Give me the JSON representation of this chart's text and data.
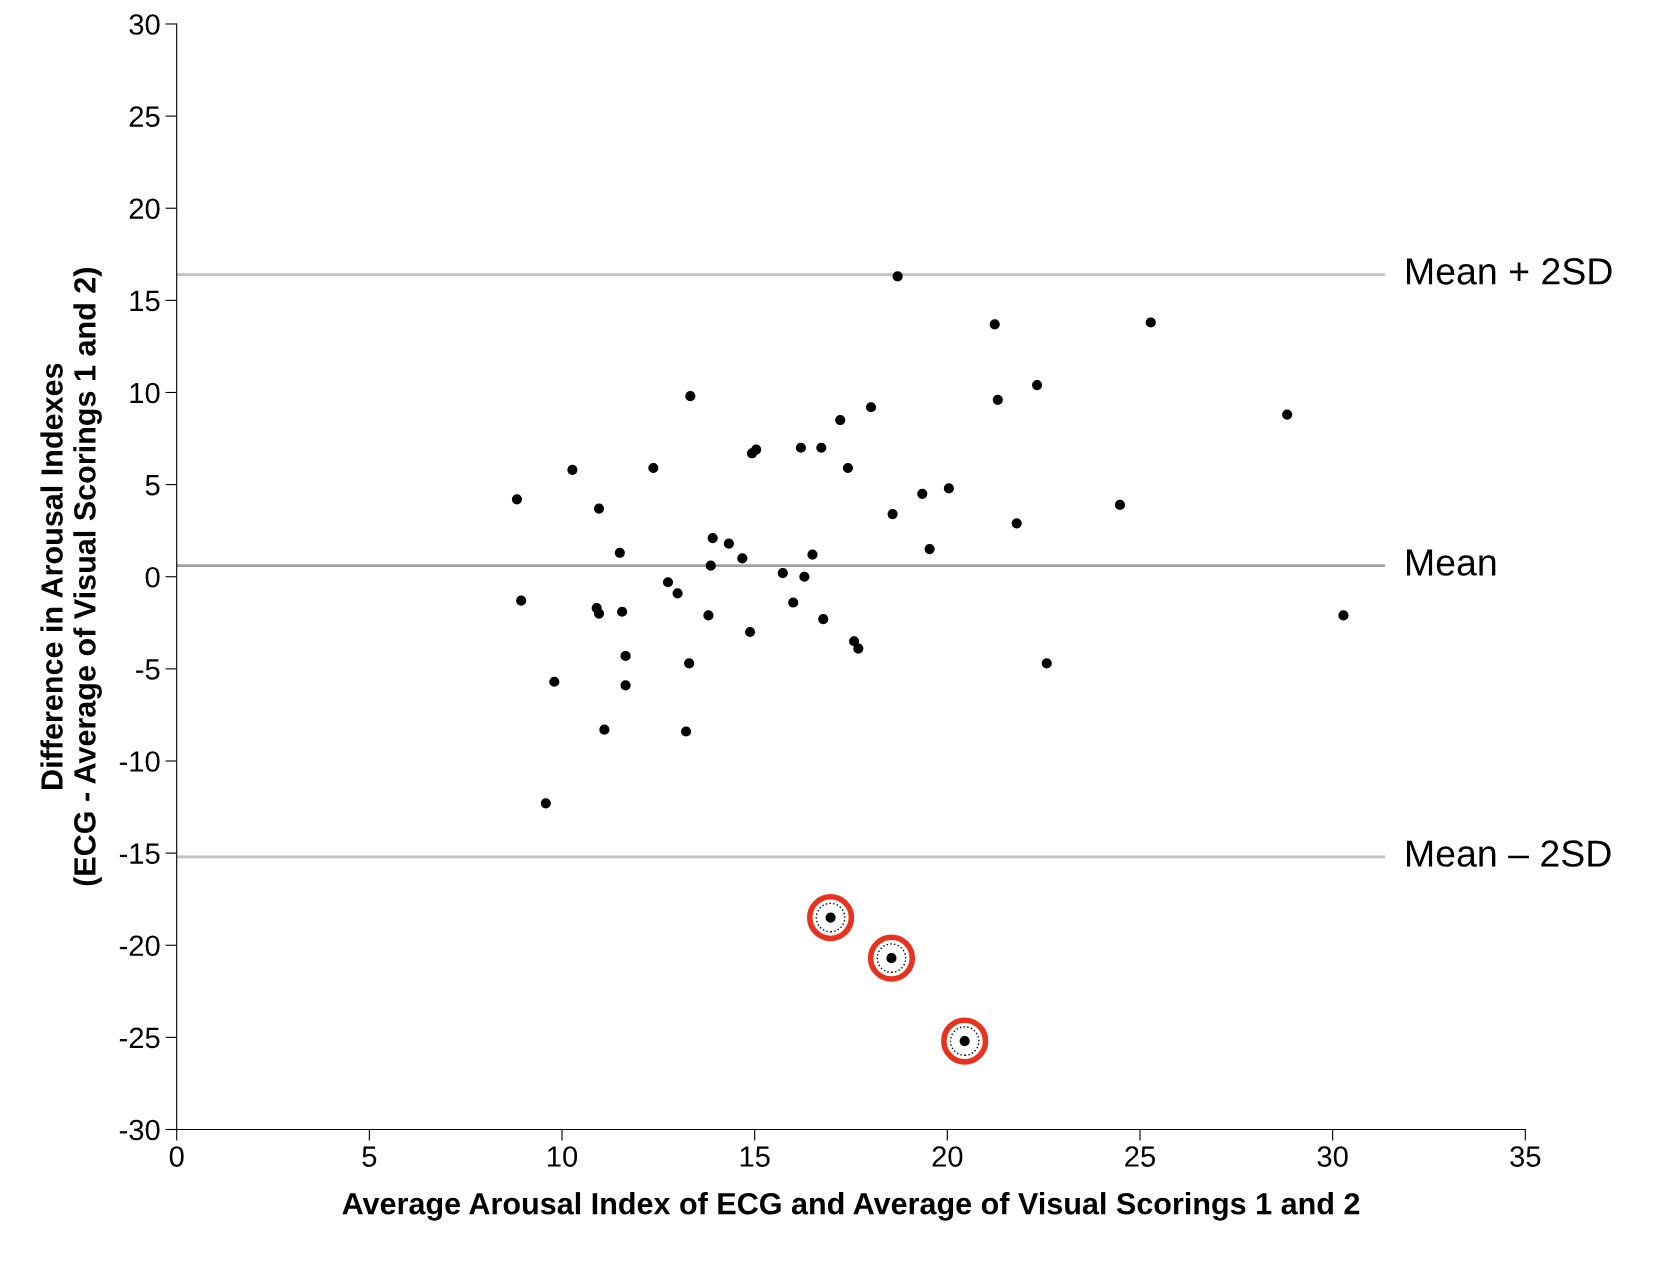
{
  "chart_data": {
    "type": "scatter",
    "xlabel": "Average Arousal Index of ECG and Average of Visual Scorings 1 and 2",
    "ylabel": "Difference in Arousal Indexes\n(ECG - Average of Visual Scorings 1 and 2)",
    "xlim": [
      0,
      35
    ],
    "ylim": [
      -30,
      30
    ],
    "xticks": [
      0,
      5,
      10,
      15,
      20,
      25,
      30,
      35
    ],
    "yticks": [
      -30,
      -25,
      -20,
      -15,
      -10,
      -5,
      0,
      5,
      10,
      15,
      20,
      25,
      30
    ],
    "grid": false,
    "legend": false,
    "marker": "circle",
    "series": [
      {
        "color": "#000000",
        "x": [
          8.83,
          8.94,
          10.27,
          9.8,
          9.58,
          10.96,
          10.9,
          10.96,
          11.1,
          11.5,
          11.56,
          11.65,
          11.65,
          12.37,
          12.75,
          13.0,
          13.33,
          13.3,
          13.22,
          13.91,
          13.86,
          13.8,
          14.33,
          14.68,
          14.88,
          14.93,
          15.04,
          15.73,
          16.0,
          16.2,
          16.29,
          16.5,
          16.73,
          16.78,
          17.22,
          17.42,
          17.58,
          17.69,
          18.02,
          18.58,
          18.71,
          19.35,
          19.54,
          20.04,
          21.23,
          21.31,
          21.8,
          22.33,
          22.58,
          24.48,
          25.28,
          28.82,
          30.28
        ],
        "values": [
          4.2,
          -1.3,
          5.8,
          -5.7,
          -12.3,
          3.7,
          -1.7,
          -2.0,
          -8.3,
          1.3,
          -1.9,
          -4.3,
          -5.9,
          5.9,
          -0.3,
          -0.9,
          9.8,
          -4.7,
          -8.4,
          2.1,
          0.6,
          -2.1,
          1.8,
          1.0,
          -3.0,
          6.7,
          6.9,
          0.2,
          -1.4,
          7.0,
          0.0,
          1.2,
          7.0,
          -2.3,
          8.5,
          5.9,
          -3.5,
          -3.9,
          9.2,
          3.4,
          16.3,
          4.5,
          1.5,
          4.8,
          13.7,
          9.6,
          2.9,
          10.4,
          -4.7,
          3.9,
          13.8,
          8.8,
          -2.1
        ]
      },
      {
        "color": "#e8321e",
        "x": [
          16.97,
          18.55,
          20.45
        ],
        "values": [
          -18.5,
          -20.7,
          -25.2
        ]
      }
    ],
    "ref_lines": [
      {
        "axis": "y",
        "value": 16.4,
        "label": "Mean + 2SD",
        "color": "#c0c0c0"
      },
      {
        "axis": "y",
        "value": 0.6,
        "label": "Mean",
        "color": "#a0a0a0"
      },
      {
        "axis": "y",
        "value": -15.2,
        "label": "Mean – 2SD",
        "color": "#c0c0c0"
      }
    ]
  }
}
